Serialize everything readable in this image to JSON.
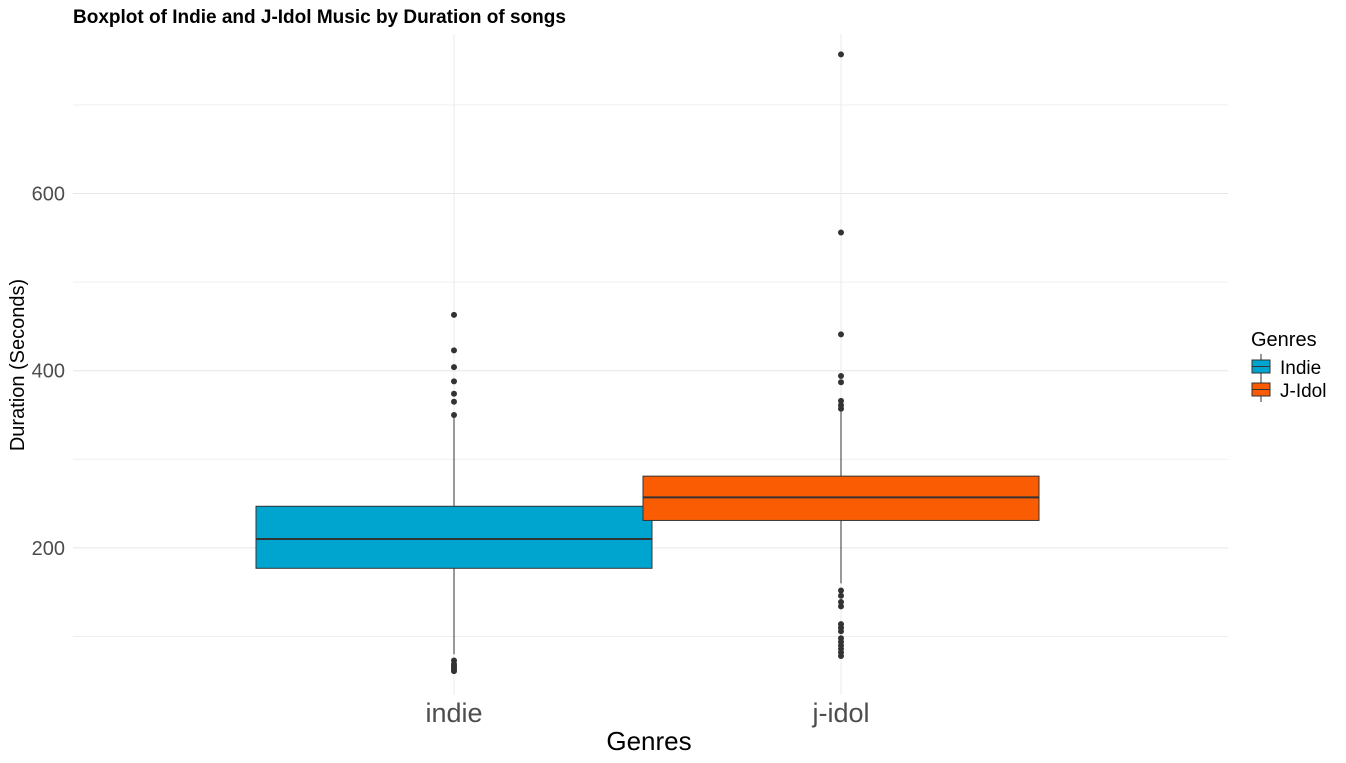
{
  "chart_data": {
    "type": "boxplot",
    "title": "Boxplot of Indie and J-Idol Music by Duration of songs",
    "xlabel": "Genres",
    "ylabel": "Duration (Seconds)",
    "ylim": [
      34,
      780
    ],
    "y_ticks": [
      200,
      400,
      600
    ],
    "grid": true,
    "legend": {
      "title": "Genres",
      "position": "right",
      "entries": [
        "Indie",
        "J-Idol"
      ]
    },
    "categories": [
      "indie",
      "j-idol"
    ],
    "series": [
      {
        "name": "Indie",
        "color": "#00A5CF",
        "q1": 177,
        "median": 210,
        "q3": 247,
        "whisker_low": 80,
        "whisker_high": 348,
        "outliers": [
          463,
          423,
          404,
          388,
          374,
          365,
          350,
          73,
          69,
          67,
          65,
          63,
          61
        ]
      },
      {
        "name": "J-Idol",
        "color": "#FA5C04",
        "q1": 231,
        "median": 257,
        "q3": 281,
        "whisker_low": 160,
        "whisker_high": 357,
        "outliers": [
          757,
          556,
          441,
          394,
          387,
          366,
          361,
          357,
          152,
          146,
          139,
          134,
          114,
          110,
          106,
          98,
          94,
          90,
          86,
          82,
          78
        ]
      }
    ]
  }
}
